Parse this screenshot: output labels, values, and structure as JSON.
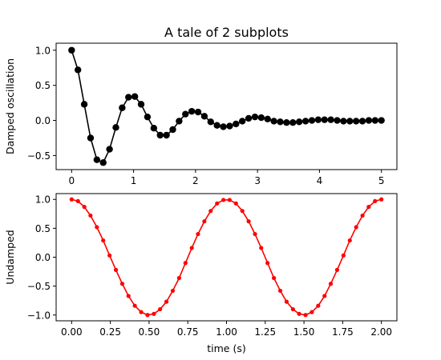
{
  "figure": {
    "title": "A tale of 2 subplots"
  },
  "chart_data": [
    {
      "type": "line",
      "title": "A tale of 2 subplots",
      "xlabel": "",
      "ylabel": "Damped oscillation",
      "xlim": [
        -0.25,
        5.25
      ],
      "ylim": [
        -0.7,
        1.1
      ],
      "x_ticks": [
        0,
        1,
        2,
        3,
        4,
        5
      ],
      "x_tick_labels": [
        "0",
        "1",
        "2",
        "3",
        "4",
        "5"
      ],
      "y_ticks": [
        -0.5,
        0.0,
        0.5,
        1.0
      ],
      "y_tick_labels": [
        "−0.5",
        "0.0",
        "0.5",
        "1.0"
      ],
      "grid": false,
      "series": [
        {
          "color": "#000000",
          "marker": "o",
          "x": [
            0,
            0.102,
            0.204,
            0.306,
            0.408,
            0.51,
            0.612,
            0.714,
            0.816,
            0.918,
            1.02,
            1.122,
            1.224,
            1.327,
            1.429,
            1.531,
            1.633,
            1.735,
            1.837,
            1.939,
            2.041,
            2.143,
            2.245,
            2.347,
            2.449,
            2.551,
            2.653,
            2.755,
            2.857,
            2.959,
            3.061,
            3.163,
            3.265,
            3.367,
            3.469,
            3.571,
            3.673,
            3.776,
            3.878,
            3.98,
            4.082,
            4.184,
            4.286,
            4.388,
            4.49,
            4.592,
            4.694,
            4.796,
            4.898,
            5.0
          ],
          "y": [
            1.0,
            0.72,
            0.23,
            -0.25,
            -0.56,
            -0.6,
            -0.41,
            -0.1,
            0.18,
            0.33,
            0.34,
            0.23,
            0.05,
            -0.11,
            -0.21,
            -0.21,
            -0.13,
            -0.01,
            0.09,
            0.13,
            0.12,
            0.06,
            -0.02,
            -0.07,
            -0.09,
            -0.08,
            -0.05,
            -0.01,
            0.03,
            0.05,
            0.04,
            0.02,
            -0.01,
            -0.02,
            -0.03,
            -0.03,
            -0.02,
            -0.01,
            0.0,
            0.01,
            0.01,
            0.01,
            0.0,
            -0.01,
            -0.01,
            -0.01,
            -0.01,
            0.0,
            0.0,
            0.0
          ]
        }
      ]
    },
    {
      "type": "line",
      "title": "",
      "xlabel": "time (s)",
      "ylabel": "Undamped",
      "xlim": [
        -0.1,
        2.1
      ],
      "ylim": [
        -1.1,
        1.1
      ],
      "x_ticks": [
        0,
        0.25,
        0.5,
        0.75,
        1.0,
        1.25,
        1.5,
        1.75,
        2.0
      ],
      "x_tick_labels": [
        "0.00",
        "0.25",
        "0.50",
        "0.75",
        "1.00",
        "1.25",
        "1.50",
        "1.75",
        "2.00"
      ],
      "y_ticks": [
        -1.0,
        -0.5,
        0.0,
        0.5,
        1.0
      ],
      "y_tick_labels": [
        "−1.0",
        "−0.5",
        "0.0",
        "0.5",
        "1.0"
      ],
      "grid": false,
      "series": [
        {
          "color": "#ff0000",
          "marker": ".",
          "x": [
            0,
            0.041,
            0.082,
            0.122,
            0.163,
            0.204,
            0.245,
            0.286,
            0.327,
            0.367,
            0.408,
            0.449,
            0.49,
            0.531,
            0.571,
            0.612,
            0.653,
            0.694,
            0.735,
            0.776,
            0.816,
            0.857,
            0.898,
            0.939,
            0.98,
            1.02,
            1.061,
            1.102,
            1.143,
            1.184,
            1.224,
            1.265,
            1.306,
            1.347,
            1.388,
            1.429,
            1.469,
            1.51,
            1.551,
            1.592,
            1.633,
            1.673,
            1.714,
            1.755,
            1.796,
            1.837,
            1.878,
            1.918,
            1.959,
            2.0
          ],
          "y": [
            1.0,
            0.97,
            0.87,
            0.72,
            0.52,
            0.29,
            0.03,
            -0.22,
            -0.46,
            -0.67,
            -0.84,
            -0.95,
            -1.0,
            -0.98,
            -0.9,
            -0.77,
            -0.58,
            -0.36,
            -0.1,
            0.16,
            0.4,
            0.62,
            0.8,
            0.93,
            0.99,
            0.99,
            0.93,
            0.8,
            0.62,
            0.4,
            0.16,
            -0.1,
            -0.36,
            -0.58,
            -0.77,
            -0.9,
            -0.98,
            -1.0,
            -0.95,
            -0.84,
            -0.67,
            -0.46,
            -0.22,
            0.03,
            0.29,
            0.52,
            0.72,
            0.87,
            0.97,
            1.0
          ]
        }
      ]
    }
  ]
}
